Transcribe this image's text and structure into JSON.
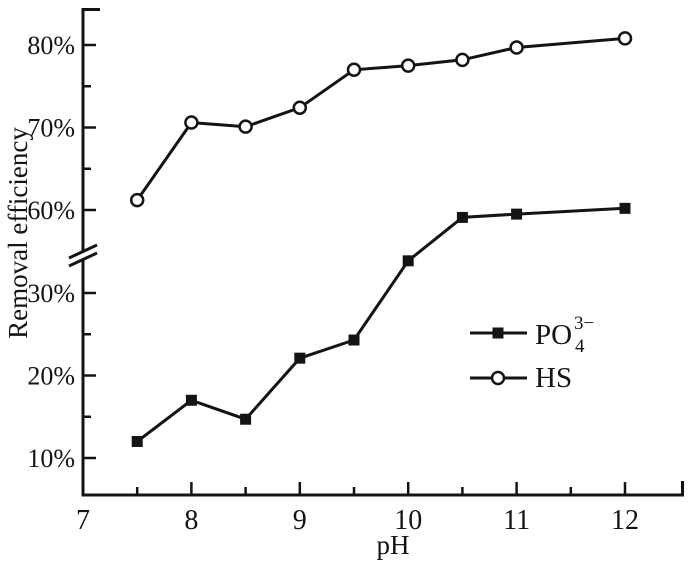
{
  "figure": {
    "background": "#ffffff",
    "ink": "#141414"
  },
  "chart_data": {
    "type": "line",
    "title": "",
    "xlabel": "pH",
    "ylabel": "Removal efficiency",
    "x": [
      7.5,
      8,
      8.5,
      9,
      9.5,
      10,
      10.5,
      11,
      12
    ],
    "series": [
      {
        "id": "po4",
        "name": "PO4(3-)",
        "marker": "filled-square",
        "values": [
          12,
          17,
          14.7,
          22.1,
          24.3,
          33.9,
          59.1,
          59.5,
          60.2
        ]
      },
      {
        "id": "hs",
        "name": "HS",
        "marker": "open-circle",
        "values": [
          61.2,
          70.6,
          70.1,
          72.4,
          77.0,
          77.5,
          78.2,
          79.7,
          80.8
        ]
      }
    ],
    "x_axis": {
      "label": "pH",
      "range": [
        7,
        12.5
      ],
      "major_ticks": [
        7,
        8,
        9,
        10,
        11,
        12
      ],
      "minor_ticks": [
        7.5,
        8.5,
        9.5,
        10.5,
        11.5
      ],
      "major_tick_labels": [
        "7",
        "8",
        "9",
        "10",
        "11",
        "12"
      ]
    },
    "y_axis": {
      "label": "Removal efficiency",
      "unit": "%",
      "broken_axis": true,
      "lower_section": {
        "range": [
          5,
          37
        ],
        "major_ticks": [
          10,
          20,
          30
        ],
        "minor_ticks": [
          15,
          25
        ],
        "major_tick_labels": [
          "10%",
          "20%",
          "30%"
        ]
      },
      "upper_section": {
        "range": [
          57,
          85
        ],
        "major_ticks": [
          60,
          70,
          80
        ],
        "minor_ticks": [
          65,
          75
        ],
        "major_tick_labels": [
          "60%",
          "70%",
          "80%"
        ]
      }
    },
    "legend": {
      "position": "center-right",
      "entries": [
        {
          "series": "po4",
          "base": "PO",
          "sup": "3−",
          "sub": "4"
        },
        {
          "series": "hs",
          "base": "HS",
          "sup": "",
          "sub": ""
        }
      ]
    },
    "grid": false
  }
}
